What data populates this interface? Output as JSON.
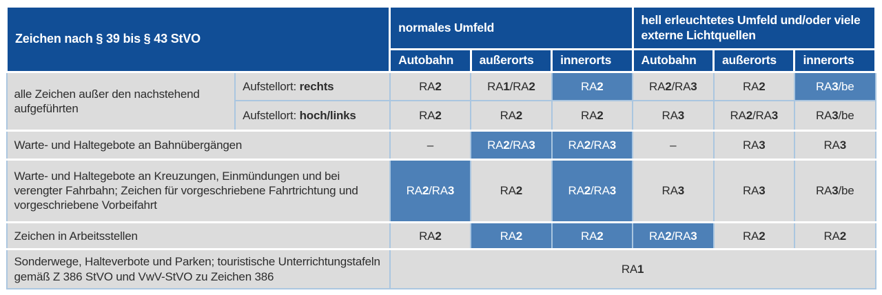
{
  "colors": {
    "header_blue": "#114e96",
    "highlight_blue": "#4d80b7",
    "cell_gray": "#dcdcdc",
    "grid_blue": "#aac6e0",
    "text_dark": "#2d2d2d",
    "text_white": "#ffffff"
  },
  "table": {
    "corner_header": "Zeichen nach § 39 bis § 43 StVO",
    "group_headers": [
      {
        "label": "normales Umfeld"
      },
      {
        "label": "hell erleuchtetes Umfeld und/oder viele externe Lichtquellen"
      }
    ],
    "column_headers": [
      "Autobahn",
      "außerorts",
      "innerorts",
      "Autobahn",
      "außerorts",
      "innerorts"
    ],
    "body_rows": [
      {
        "sep": true,
        "cells": [
          {
            "type": "desc",
            "text": "alle Zeichen außer den nachstehend aufgeführten",
            "rowspan": 2
          },
          {
            "type": "sublabel",
            "prefix": "Aufstellort: ",
            "bold": "rechts"
          },
          {
            "type": "value",
            "text": "RA2"
          },
          {
            "type": "value",
            "text": "RA1/RA2"
          },
          {
            "type": "value",
            "text": "RA2",
            "highlight": true
          },
          {
            "type": "value",
            "text": "RA2/RA3"
          },
          {
            "type": "value",
            "text": "RA2"
          },
          {
            "type": "value",
            "text": "RA3/be",
            "highlight": true
          }
        ]
      },
      {
        "sep": false,
        "cells": [
          {
            "type": "sublabel",
            "prefix": "Aufstellort: ",
            "bold": "hoch/links"
          },
          {
            "type": "value",
            "text": "RA2"
          },
          {
            "type": "value",
            "text": "RA2"
          },
          {
            "type": "value",
            "text": "RA2"
          },
          {
            "type": "value",
            "text": "RA3"
          },
          {
            "type": "value",
            "text": "RA2/RA3"
          },
          {
            "type": "value",
            "text": "RA3/be"
          }
        ]
      },
      {
        "sep": true,
        "cells": [
          {
            "type": "desc",
            "text": "Warte- und Haltegebote an Bahnübergängen",
            "colspan": 2
          },
          {
            "type": "value",
            "text": "–"
          },
          {
            "type": "value",
            "text": "RA2/RA3",
            "highlight": true
          },
          {
            "type": "value",
            "text": "RA2/RA3",
            "highlight": true
          },
          {
            "type": "value",
            "text": "–"
          },
          {
            "type": "value",
            "text": "RA3"
          },
          {
            "type": "value",
            "text": "RA3"
          }
        ]
      },
      {
        "sep": true,
        "cells": [
          {
            "type": "desc",
            "text": "Warte- und Haltegebote an Kreuzungen, Einmündungen und bei verengter Fahrbahn; Zeichen für vorgeschriebene Fahrtrichtung und vorgeschriebene Vorbeifahrt",
            "colspan": 2
          },
          {
            "type": "value",
            "text": "RA2/RA3",
            "highlight": true
          },
          {
            "type": "value",
            "text": "RA2"
          },
          {
            "type": "value",
            "text": "RA2/RA3",
            "highlight": true
          },
          {
            "type": "value",
            "text": "RA3"
          },
          {
            "type": "value",
            "text": "RA3"
          },
          {
            "type": "value",
            "text": "RA3/be"
          }
        ]
      },
      {
        "sep": true,
        "cells": [
          {
            "type": "desc",
            "text": "Zeichen in Arbeitsstellen",
            "colspan": 2
          },
          {
            "type": "value",
            "text": "RA2"
          },
          {
            "type": "value",
            "text": "RA2",
            "highlight": true
          },
          {
            "type": "value",
            "text": "RA2",
            "highlight": true
          },
          {
            "type": "value",
            "text": "RA2/RA3",
            "highlight": true
          },
          {
            "type": "value",
            "text": "RA2"
          },
          {
            "type": "value",
            "text": "RA2"
          }
        ]
      },
      {
        "sep": true,
        "cells": [
          {
            "type": "desc",
            "text": "Sonderwege, Halteverbote und Parken; touristische Unterrichtungstafeln gemäß Z 386 StVO und VwV-StVO zu Zeichen 386",
            "colspan": 2
          },
          {
            "type": "value",
            "text": "RA1",
            "colspan": 6
          }
        ]
      }
    ]
  }
}
